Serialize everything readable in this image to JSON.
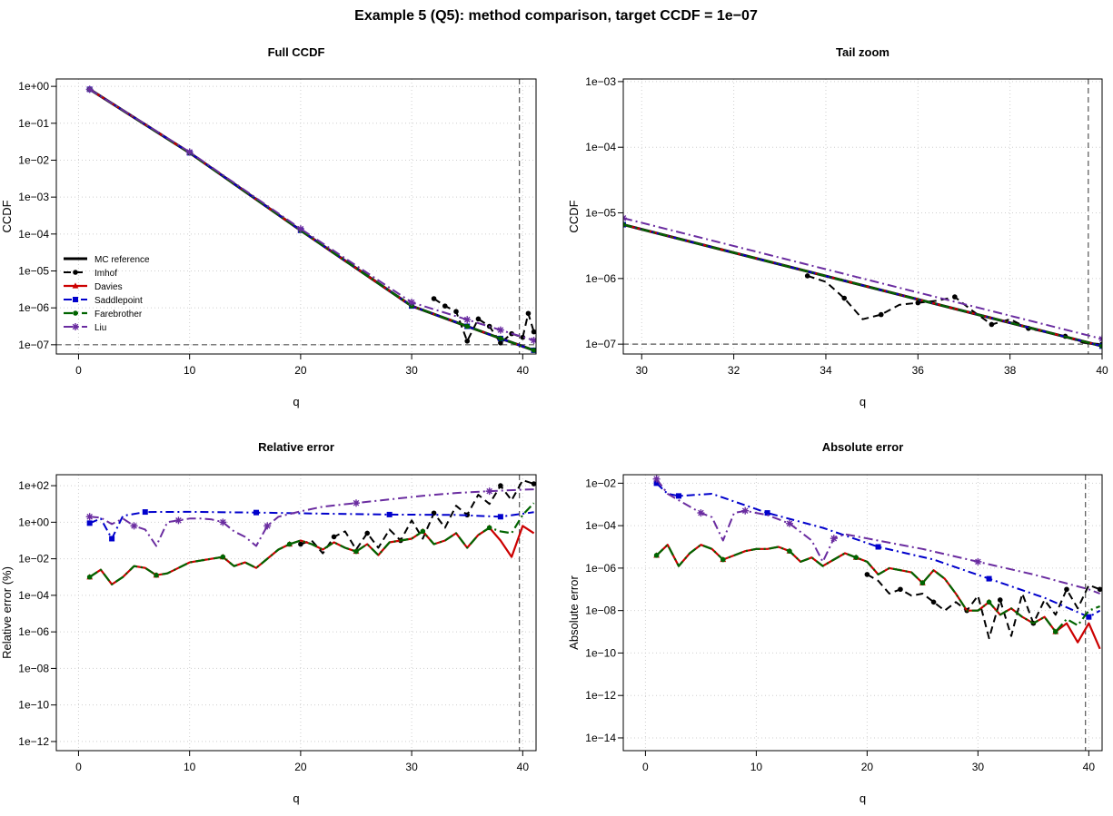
{
  "title": "Example 5 (Q5): method comparison, target CCDF = 1e−07",
  "colors": {
    "mc": "#000000",
    "imhof": "#000000",
    "davies": "#cc0000",
    "saddlepoint": "#0000cc",
    "farebrother": "#006400",
    "liu": "#6a2ca0",
    "grid": "#cfcfcf",
    "refline": "#555555"
  },
  "chart_data": [
    {
      "type": "line",
      "title": "Full CCDF",
      "xlabel": "q",
      "ylabel": "CCDF",
      "log_y": true,
      "xlim": [
        -2,
        41.2
      ],
      "ylim_exp": [
        -7.25,
        0.2
      ],
      "x_ticks": [
        0,
        10,
        20,
        30,
        40
      ],
      "y_ticks": [
        "1e+00",
        "1e−01",
        "1e−02",
        "1e−03",
        "1e−04",
        "1e−05",
        "1e−06",
        "1e−07"
      ],
      "y_tick_exps": [
        0,
        -1,
        -2,
        -3,
        -4,
        -5,
        -6,
        -7
      ],
      "vline": 39.7,
      "hline_exp": -7,
      "legend": {
        "position": "bottom-left",
        "entries": [
          "MC reference",
          "Imhof",
          "Davies",
          "Saddlepoint",
          "Farebrother",
          "Liu"
        ]
      },
      "series": [
        {
          "name": "MC reference",
          "key": "mc",
          "x": [
            1,
            10,
            20,
            30,
            35,
            38,
            41
          ],
          "log10_y": [
            -0.08,
            -1.8,
            -3.9,
            -5.95,
            -6.5,
            -6.83,
            -7.15
          ]
        },
        {
          "name": "Imhof",
          "key": "imhof",
          "x": [
            32,
            33,
            34,
            35,
            36,
            37,
            38,
            39,
            40,
            40.5,
            41
          ],
          "log10_y": [
            -5.75,
            -5.95,
            -6.1,
            -6.9,
            -6.3,
            -6.5,
            -6.95,
            -6.7,
            -6.8,
            -6.15,
            -6.65
          ]
        },
        {
          "name": "Davies",
          "key": "davies",
          "x": [
            1,
            10,
            20,
            30,
            35,
            38,
            41
          ],
          "log10_y": [
            -0.08,
            -1.8,
            -3.9,
            -5.95,
            -6.5,
            -6.83,
            -7.15
          ]
        },
        {
          "name": "Saddlepoint",
          "key": "saddlepoint",
          "x": [
            1,
            10,
            20,
            30,
            35,
            38,
            41
          ],
          "log10_y": [
            -0.08,
            -1.8,
            -3.9,
            -5.95,
            -6.5,
            -6.83,
            -7.15
          ]
        },
        {
          "name": "Farebrother",
          "key": "farebrother",
          "x": [
            1,
            10,
            20,
            30,
            35,
            38,
            41
          ],
          "log10_y": [
            -0.08,
            -1.8,
            -3.9,
            -5.95,
            -6.5,
            -6.83,
            -7.15
          ]
        },
        {
          "name": "Liu",
          "key": "liu",
          "x": [
            1,
            10,
            20,
            30,
            35,
            38,
            41
          ],
          "log10_y": [
            -0.08,
            -1.78,
            -3.86,
            -5.85,
            -6.32,
            -6.6,
            -6.88
          ]
        }
      ]
    },
    {
      "type": "line",
      "title": "Tail zoom",
      "xlabel": "q",
      "ylabel": "CCDF",
      "log_y": true,
      "xlim": [
        29.6,
        40.0
      ],
      "ylim_exp": [
        -7.15,
        -2.96
      ],
      "x_ticks": [
        30,
        32,
        34,
        36,
        38,
        40
      ],
      "y_ticks": [
        "1e−03",
        "1e−04",
        "1e−05",
        "1e−06",
        "1e−07"
      ],
      "y_tick_exps": [
        -3,
        -4,
        -5,
        -6,
        -7
      ],
      "vline": 39.7,
      "hline_exp": -7,
      "series": [
        {
          "name": "MC reference",
          "key": "mc",
          "x": [
            29.6,
            40.0
          ],
          "log10_y": [
            -5.18,
            -7.03
          ]
        },
        {
          "name": "Imhof",
          "key": "imhof",
          "x": [
            33.6,
            34.0,
            34.4,
            34.8,
            35.2,
            35.6,
            36.0,
            36.4,
            36.8,
            37.2,
            37.6,
            38.0,
            38.4,
            38.8,
            39.2,
            39.6,
            40.0
          ],
          "log10_y": [
            -5.96,
            -6.05,
            -6.3,
            -6.62,
            -6.55,
            -6.4,
            -6.37,
            -6.34,
            -6.28,
            -6.5,
            -6.7,
            -6.62,
            -6.76,
            -6.82,
            -6.88,
            -6.98,
            -7.0
          ]
        },
        {
          "name": "Davies",
          "key": "davies",
          "x": [
            29.6,
            40.0
          ],
          "log10_y": [
            -5.18,
            -7.03
          ]
        },
        {
          "name": "Saddlepoint",
          "key": "saddlepoint",
          "x": [
            29.6,
            40.0
          ],
          "log10_y": [
            -5.18,
            -7.03
          ]
        },
        {
          "name": "Farebrother",
          "key": "farebrother",
          "x": [
            29.6,
            40.0
          ],
          "log10_y": [
            -5.18,
            -7.03
          ]
        },
        {
          "name": "Liu",
          "key": "liu",
          "x": [
            29.6,
            40.0
          ],
          "log10_y": [
            -5.08,
            -6.92
          ]
        }
      ]
    },
    {
      "type": "line",
      "title": "Relative error",
      "xlabel": "q",
      "ylabel": "Relative error (%)",
      "log_y": true,
      "xlim": [
        -2,
        41.2
      ],
      "ylim_exp": [
        -12.5,
        2.6
      ],
      "x_ticks": [
        0,
        10,
        20,
        30,
        40
      ],
      "y_ticks": [
        "1e+02",
        "1e+00",
        "1e−02",
        "1e−04",
        "1e−06",
        "1e−08",
        "1e−10",
        "1e−12"
      ],
      "y_tick_exps": [
        2,
        0,
        -2,
        -4,
        -6,
        -8,
        -10,
        -12
      ],
      "vline": 39.7,
      "series": [
        {
          "name": "Imhof",
          "key": "imhof",
          "x": [
            20,
            21,
            22,
            23,
            24,
            25,
            26,
            27,
            28,
            29,
            30,
            31,
            32,
            33,
            34,
            35,
            36,
            37,
            38,
            39,
            40,
            41
          ],
          "log10_y": [
            -1.2,
            -1.0,
            -1.7,
            -0.8,
            -0.5,
            -1.5,
            -0.6,
            -1.4,
            -0.4,
            -1.0,
            0.1,
            -0.9,
            0.5,
            -0.3,
            0.9,
            0.4,
            1.5,
            1.0,
            2.0,
            1.2,
            2.3,
            2.1
          ]
        },
        {
          "name": "Davies",
          "key": "davies",
          "x": [
            1,
            2,
            3,
            4,
            5,
            6,
            7,
            8,
            9,
            10,
            11,
            12,
            13,
            14,
            15,
            16,
            17,
            18,
            19,
            20,
            21,
            22,
            23,
            24,
            25,
            26,
            27,
            28,
            29,
            30,
            31,
            32,
            33,
            34,
            35,
            36,
            37,
            38,
            39,
            40,
            41
          ],
          "log10_y": [
            -3.0,
            -2.6,
            -3.4,
            -3.0,
            -2.4,
            -2.5,
            -2.9,
            -2.8,
            -2.5,
            -2.2,
            -2.1,
            -2.0,
            -1.9,
            -2.4,
            -2.2,
            -2.5,
            -2.0,
            -1.5,
            -1.2,
            -1.0,
            -1.2,
            -1.5,
            -1.1,
            -1.4,
            -1.6,
            -1.2,
            -1.8,
            -1.1,
            -1.0,
            -0.9,
            -0.5,
            -1.2,
            -1.0,
            -0.6,
            -1.4,
            -0.7,
            -0.3,
            -1.0,
            -1.9,
            -0.2,
            -0.6
          ]
        },
        {
          "name": "Saddlepoint",
          "key": "saddlepoint",
          "x": [
            1,
            2,
            3,
            4,
            6,
            10,
            16,
            22,
            28,
            34,
            38,
            41
          ],
          "log10_y": [
            -0.05,
            0.2,
            -0.9,
            0.35,
            0.56,
            0.57,
            0.53,
            0.47,
            0.42,
            0.4,
            0.3,
            0.55
          ]
        },
        {
          "name": "Farebrother",
          "key": "farebrother",
          "x": [
            1,
            2,
            3,
            4,
            5,
            6,
            7,
            8,
            9,
            10,
            11,
            12,
            13,
            14,
            15,
            16,
            17,
            18,
            19,
            20,
            21,
            22,
            23,
            24,
            25,
            26,
            27,
            28,
            29,
            30,
            31,
            32,
            33,
            34,
            35,
            36,
            37,
            38,
            39,
            40,
            41
          ],
          "log10_y": [
            -3.0,
            -2.6,
            -3.4,
            -3.0,
            -2.4,
            -2.5,
            -2.9,
            -2.8,
            -2.5,
            -2.2,
            -2.1,
            -2.0,
            -1.9,
            -2.4,
            -2.2,
            -2.5,
            -2.0,
            -1.5,
            -1.2,
            -1.0,
            -1.2,
            -1.5,
            -1.1,
            -1.4,
            -1.6,
            -1.2,
            -1.8,
            -1.1,
            -1.0,
            -0.9,
            -0.5,
            -1.2,
            -1.0,
            -0.6,
            -1.4,
            -0.7,
            -0.3,
            -0.5,
            -0.6,
            0.4,
            1.05
          ]
        },
        {
          "name": "Liu",
          "key": "liu",
          "x": [
            1,
            2,
            3,
            4,
            5,
            6,
            7,
            8,
            9,
            10,
            11,
            12,
            13,
            14,
            15,
            16,
            17,
            18,
            20,
            22,
            25,
            28,
            31,
            34,
            37,
            40,
            41
          ],
          "log10_y": [
            0.3,
            0.25,
            -0.1,
            0.2,
            -0.2,
            -0.4,
            -1.3,
            0.0,
            0.1,
            0.2,
            0.2,
            0.15,
            0.0,
            -0.5,
            -0.8,
            -1.3,
            -0.2,
            0.3,
            0.6,
            0.85,
            1.05,
            1.25,
            1.45,
            1.6,
            1.7,
            1.78,
            1.8
          ]
        }
      ]
    },
    {
      "type": "line",
      "title": "Absolute error",
      "xlabel": "q",
      "ylabel": "Absolute error",
      "log_y": true,
      "xlim": [
        -2,
        41.2
      ],
      "ylim_exp": [
        -14.6,
        -1.6
      ],
      "x_ticks": [
        0,
        10,
        20,
        30,
        40
      ],
      "y_ticks": [
        "1e−02",
        "1e−04",
        "1e−06",
        "1e−08",
        "1e−10",
        "1e−12",
        "1e−14"
      ],
      "y_tick_exps": [
        -2,
        -4,
        -6,
        -8,
        -10,
        -12,
        -14
      ],
      "vline": 39.7,
      "series": [
        {
          "name": "Imhof",
          "key": "imhof",
          "x": [
            20,
            21,
            22,
            23,
            24,
            25,
            26,
            27,
            28,
            29,
            30,
            31,
            32,
            33,
            34,
            35,
            36,
            37,
            38,
            39,
            40,
            41
          ],
          "log10_y": [
            -6.3,
            -6.6,
            -7.2,
            -7.0,
            -7.3,
            -7.2,
            -7.6,
            -8.0,
            -7.6,
            -8.0,
            -7.3,
            -9.3,
            -7.5,
            -9.2,
            -7.2,
            -8.6,
            -7.5,
            -8.2,
            -7.0,
            -7.9,
            -6.8,
            -7.0
          ]
        },
        {
          "name": "Davies",
          "key": "davies",
          "x": [
            1,
            2,
            3,
            4,
            5,
            6,
            7,
            8,
            9,
            10,
            11,
            12,
            13,
            14,
            15,
            16,
            17,
            18,
            19,
            20,
            21,
            22,
            23,
            24,
            25,
            26,
            27,
            28,
            29,
            30,
            31,
            32,
            33,
            34,
            35,
            36,
            37,
            38,
            39,
            40,
            41
          ],
          "log10_y": [
            -5.4,
            -4.9,
            -5.9,
            -5.3,
            -4.9,
            -5.1,
            -5.6,
            -5.4,
            -5.2,
            -5.1,
            -5.1,
            -5.0,
            -5.2,
            -5.7,
            -5.5,
            -5.9,
            -5.6,
            -5.3,
            -5.5,
            -5.7,
            -6.3,
            -6.0,
            -6.1,
            -6.2,
            -6.7,
            -6.1,
            -6.5,
            -7.2,
            -8.0,
            -8.0,
            -7.6,
            -8.2,
            -7.9,
            -8.3,
            -8.6,
            -8.3,
            -9.0,
            -8.6,
            -9.5,
            -8.6,
            -9.8
          ]
        },
        {
          "name": "Saddlepoint",
          "key": "saddlepoint",
          "x": [
            1,
            2,
            3,
            6,
            11,
            16,
            21,
            26,
            31,
            36,
            40,
            41
          ],
          "log10_y": [
            -2.0,
            -2.5,
            -2.6,
            -2.5,
            -3.4,
            -4.1,
            -5.0,
            -5.6,
            -6.5,
            -7.4,
            -8.3,
            -8.0
          ]
        },
        {
          "name": "Farebrother",
          "key": "farebrother",
          "x": [
            1,
            2,
            3,
            4,
            5,
            6,
            7,
            8,
            9,
            10,
            11,
            12,
            13,
            14,
            15,
            16,
            17,
            18,
            19,
            20,
            21,
            22,
            23,
            24,
            25,
            26,
            27,
            28,
            29,
            30,
            31,
            32,
            33,
            34,
            35,
            36,
            37,
            38,
            39,
            40,
            41
          ],
          "log10_y": [
            -5.4,
            -4.9,
            -5.9,
            -5.3,
            -4.9,
            -5.1,
            -5.6,
            -5.4,
            -5.2,
            -5.1,
            -5.1,
            -5.0,
            -5.2,
            -5.7,
            -5.5,
            -5.9,
            -5.6,
            -5.3,
            -5.5,
            -5.7,
            -6.3,
            -6.0,
            -6.1,
            -6.2,
            -6.7,
            -6.1,
            -6.5,
            -7.2,
            -8.0,
            -8.0,
            -7.6,
            -8.2,
            -7.9,
            -8.3,
            -8.6,
            -8.3,
            -9.0,
            -8.4,
            -8.7,
            -8.0,
            -7.8
          ]
        },
        {
          "name": "Liu",
          "key": "liu",
          "x": [
            1,
            2,
            3,
            4,
            5,
            6,
            7,
            8,
            9,
            10,
            11,
            12,
            13,
            14,
            15,
            16,
            17,
            18,
            20,
            25,
            30,
            35,
            40,
            41
          ],
          "log10_y": [
            -1.8,
            -2.5,
            -2.8,
            -3.1,
            -3.4,
            -3.6,
            -4.7,
            -3.4,
            -3.3,
            -3.4,
            -3.5,
            -3.7,
            -3.9,
            -4.3,
            -4.7,
            -5.7,
            -4.6,
            -4.4,
            -4.6,
            -5.1,
            -5.7,
            -6.3,
            -7.0,
            -7.2
          ]
        }
      ]
    }
  ]
}
